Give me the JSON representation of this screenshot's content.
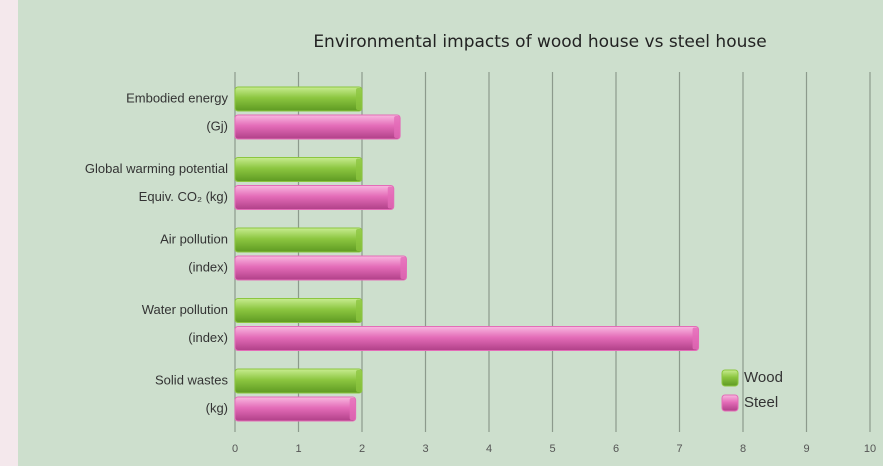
{
  "chart_data": {
    "type": "bar",
    "orientation": "horizontal",
    "title": "Environmental impacts of wood house vs steel house",
    "categories": [
      [
        "Embodied energy",
        "(Gj)"
      ],
      [
        "Global warming potential",
        "Equiv. CO₂ (kg)"
      ],
      [
        "Air pollution",
        "(index)"
      ],
      [
        "Water pollution",
        "(index)"
      ],
      [
        "Solid wastes",
        "(kg)"
      ]
    ],
    "series": [
      {
        "name": "Wood",
        "color": "#8cc640",
        "values": [
          2,
          2,
          2,
          2,
          2
        ]
      },
      {
        "name": "Steel",
        "color": "#e46cb8",
        "values": [
          2.6,
          2.5,
          2.7,
          7.3,
          1.9
        ]
      }
    ],
    "xlim": [
      0,
      10
    ],
    "xticks": [
      0,
      1,
      2,
      3,
      4,
      5,
      6,
      7,
      8,
      9,
      10
    ],
    "grid": true,
    "legend": "lower right"
  }
}
